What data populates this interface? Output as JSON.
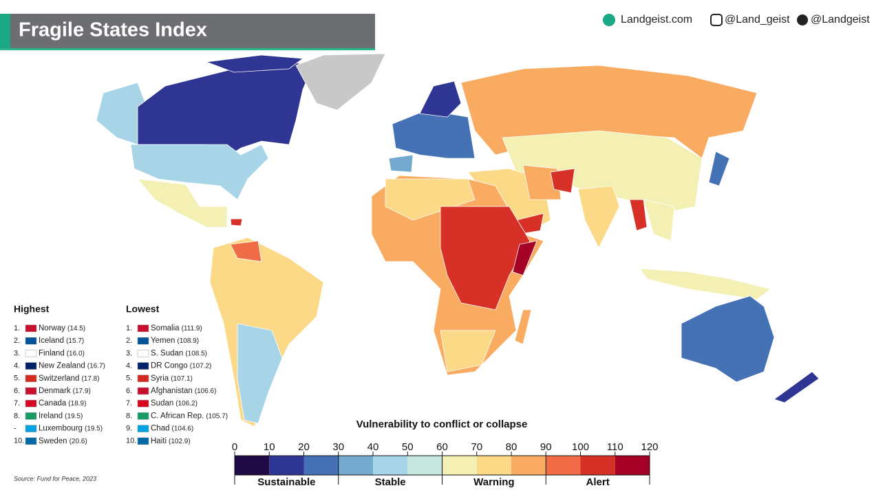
{
  "header": {
    "title": "Fragile States Index",
    "links": [
      "Landgeist.com",
      "@Land_geist",
      "@Landgeist"
    ]
  },
  "highest": {
    "title": "Highest",
    "items": [
      {
        "rank": "1.",
        "name": "Norway",
        "score": "(14.5)"
      },
      {
        "rank": "2.",
        "name": "Iceland",
        "score": "(15.7)"
      },
      {
        "rank": "3.",
        "name": "Finland",
        "score": "(16.0)"
      },
      {
        "rank": "4.",
        "name": "New Zealand",
        "score": "(16.7)"
      },
      {
        "rank": "5.",
        "name": "Switzerland",
        "score": "(17.8)"
      },
      {
        "rank": "6.",
        "name": "Denmark",
        "score": "(17.9)"
      },
      {
        "rank": "7.",
        "name": "Canada",
        "score": "(18.9)"
      },
      {
        "rank": "8.",
        "name": "Ireland",
        "score": "(19.5)"
      },
      {
        "rank": "-",
        "name": "Luxembourg",
        "score": "(19.5)"
      },
      {
        "rank": "10.",
        "name": "Sweden",
        "score": "(20.6)"
      }
    ]
  },
  "lowest": {
    "title": "Lowest",
    "items": [
      {
        "rank": "1.",
        "name": "Somalia",
        "score": "(111.9)"
      },
      {
        "rank": "2.",
        "name": "Yemen",
        "score": "(108.9)"
      },
      {
        "rank": "3.",
        "name": "S. Sudan",
        "score": "(108.5)"
      },
      {
        "rank": "4.",
        "name": "DR Congo",
        "score": "(107.2)"
      },
      {
        "rank": "5.",
        "name": "Syria",
        "score": "(107.1)"
      },
      {
        "rank": "6.",
        "name": "Afghanistan",
        "score": "(106.6)"
      },
      {
        "rank": "7.",
        "name": "Sudan",
        "score": "(106.2)"
      },
      {
        "rank": "8.",
        "name": "C. African Rep.",
        "score": "(105.7)"
      },
      {
        "rank": "9.",
        "name": "Chad",
        "score": "(104.6)"
      },
      {
        "rank": "10.",
        "name": "Haiti",
        "score": "(102.9)"
      }
    ]
  },
  "legend": {
    "title": "Vulnerability to conflict or collapse",
    "ticks": [
      0,
      10,
      20,
      30,
      40,
      50,
      60,
      70,
      80,
      90,
      100,
      110,
      120
    ],
    "colors": [
      "#200a46",
      "#2e3592",
      "#4472b4",
      "#74a9d0",
      "#a8d4e8",
      "#c6e6e0",
      "#f4f0b4",
      "#fbd986",
      "#f9ab62",
      "#f06c46",
      "#d73027",
      "#a50026"
    ],
    "groups": [
      {
        "label": "Sustainable",
        "range": [
          0,
          30
        ]
      },
      {
        "label": "Stable",
        "range": [
          30,
          60
        ]
      },
      {
        "label": "Warning",
        "range": [
          60,
          90
        ]
      },
      {
        "label": "Alert",
        "range": [
          90,
          120
        ]
      }
    ]
  },
  "source": "Source: Fund for Peace, 2023"
}
